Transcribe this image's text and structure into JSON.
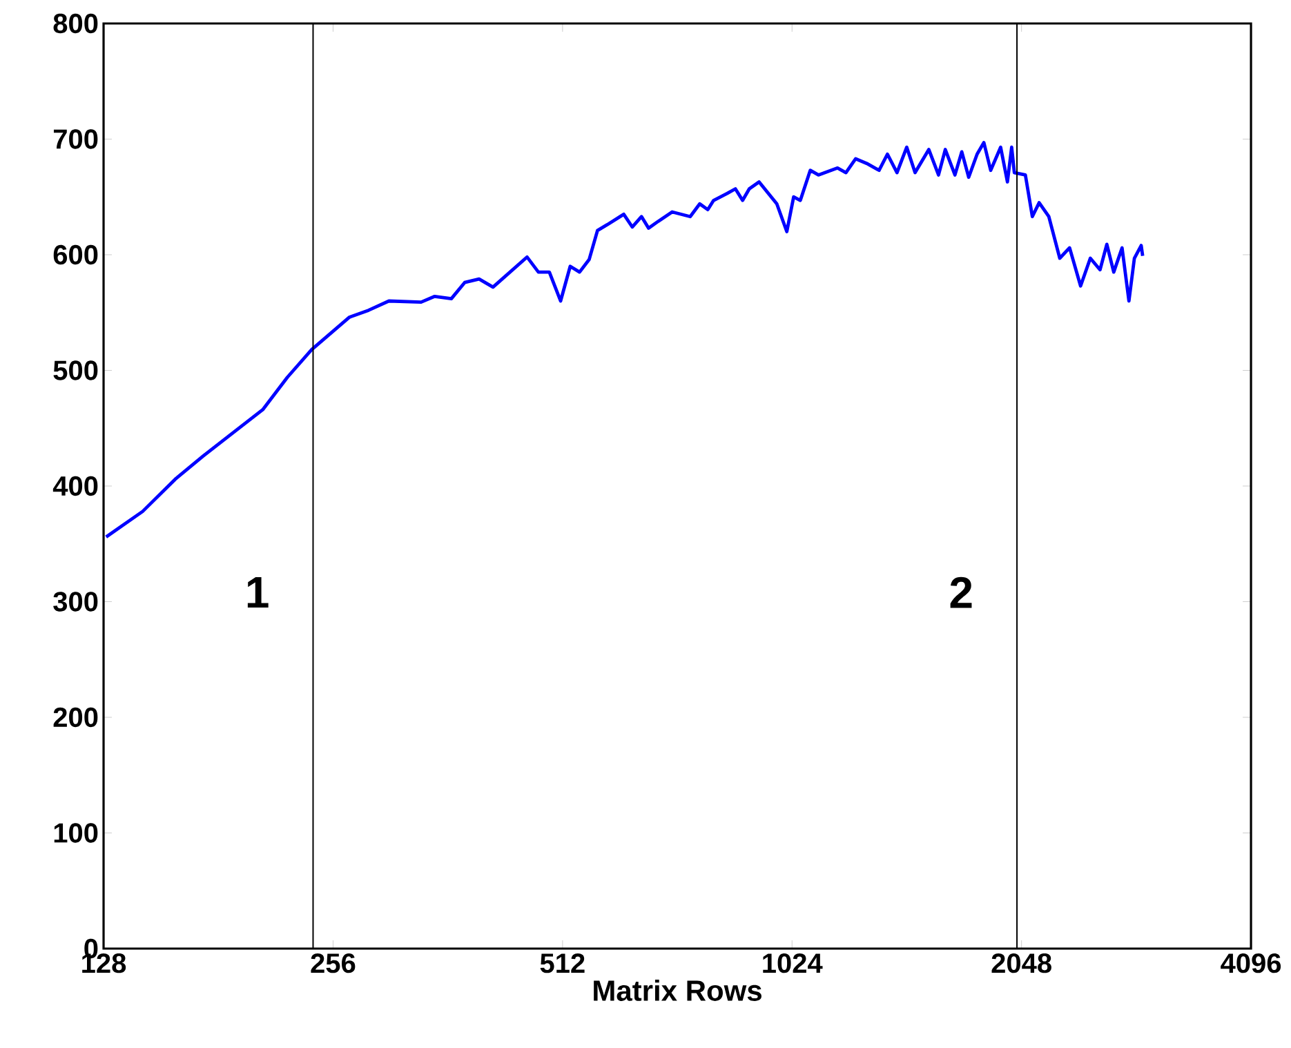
{
  "chart_data": {
    "type": "line",
    "xlabel": "Matrix Rows",
    "log": "x",
    "color": "#0000ff",
    "x": [
      129,
      144,
      159,
      173,
      190,
      207,
      223,
      240,
      269,
      285,
      303,
      334,
      348,
      366,
      381,
      398,
      415,
      460,
      476,
      492,
      509,
      524,
      539,
      555,
      569,
      586,
      616,
      632,
      650,
      664,
      684,
      713,
      753,
      775,
      794,
      808,
      842,
      863,
      882,
      900,
      927,
      978,
      1008,
      1029,
      1050,
      1082,
      1109,
      1175,
      1205,
      1241,
      1283,
      1332,
      1366,
      1406,
      1448,
      1485,
      1548,
      1594,
      1627,
      1675,
      1710,
      1746,
      1791,
      1828,
      1866,
      1923,
      1963,
      1988,
      2004,
      2072,
      2116,
      2160,
      2224,
      2299,
      2368,
      2448,
      2521,
      2596,
      2650,
      2706,
      2775,
      2833,
      2880,
      2940,
      2953
    ],
    "values": [
      356,
      378,
      406,
      426,
      447,
      466,
      494,
      518,
      546,
      552,
      560,
      559,
      564,
      562,
      576,
      579,
      572,
      598,
      585,
      585,
      560,
      590,
      585,
      596,
      621,
      626,
      635,
      624,
      633,
      623,
      629,
      637,
      633,
      644,
      639,
      647,
      653,
      657,
      647,
      657,
      663,
      644,
      620,
      650,
      647,
      673,
      669,
      675,
      671,
      683,
      679,
      673,
      687,
      671,
      693,
      671,
      691,
      669,
      691,
      669,
      689,
      667,
      687,
      697,
      673,
      693,
      663,
      693,
      671,
      669,
      633,
      645,
      633,
      597,
      606,
      573,
      597,
      587,
      609,
      585,
      606,
      560,
      597,
      608,
      599
    ],
    "xlim": [
      128,
      4096
    ],
    "ylim": [
      0,
      800
    ],
    "xticks": [
      128,
      256,
      512,
      1024,
      2048,
      4096
    ],
    "yticks": [
      0,
      100,
      200,
      300,
      400,
      500,
      600,
      700,
      800
    ],
    "ref_lines": [
      {
        "axis": "x",
        "value": 241
      },
      {
        "axis": "x",
        "value": 2020
      }
    ],
    "annotations": [
      "1",
      "2"
    ]
  }
}
